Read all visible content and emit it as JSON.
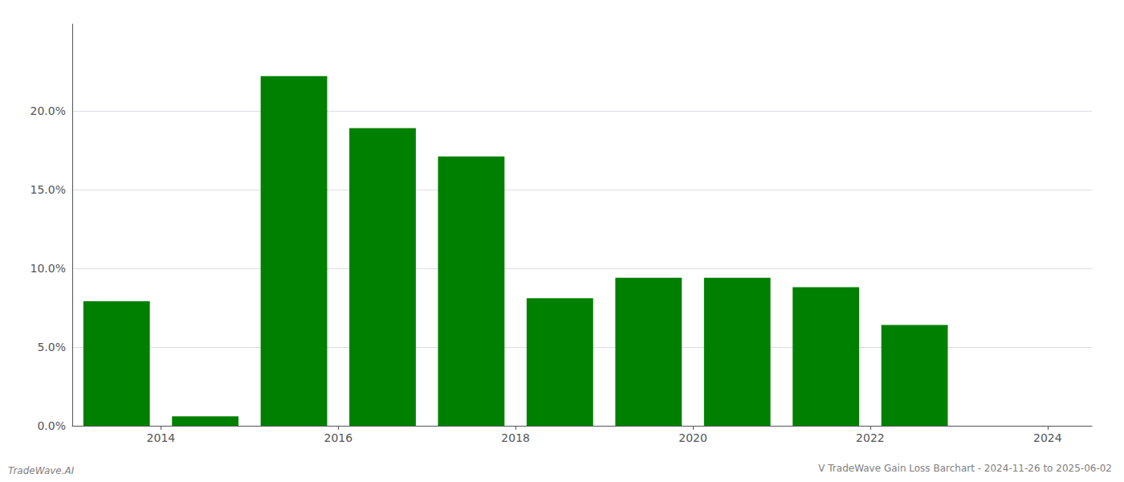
{
  "chart_data": {
    "type": "bar",
    "title": "V TradeWave Gain Loss Barchart - 2024-11-26 to 2025-06-02",
    "annotations": [
      "TradeWave.AI"
    ],
    "x": [
      2014,
      2015,
      2016,
      2017,
      2018,
      2019,
      2020,
      2021,
      2022,
      2023,
      2024
    ],
    "values": [
      0.079,
      0.006,
      0.222,
      0.189,
      0.171,
      0.081,
      0.094,
      0.094,
      0.088,
      0.064,
      0.0
    ],
    "color": "#008000",
    "xlim": [
      2013.5,
      2025.0
    ],
    "xticks": [
      {
        "value": 2014.5,
        "label": "2014"
      },
      {
        "value": 2016.5,
        "label": "2016"
      },
      {
        "value": 2018.5,
        "label": "2018"
      },
      {
        "value": 2020.5,
        "label": "2020"
      },
      {
        "value": 2022.5,
        "label": "2022"
      },
      {
        "value": 2024.5,
        "label": "2024"
      }
    ],
    "ylim": [
      0,
      0.255
    ],
    "yticks": [
      {
        "value": 0.0,
        "label": "0.0%"
      },
      {
        "value": 0.05,
        "label": "5.0%"
      },
      {
        "value": 0.1,
        "label": "10.0%"
      },
      {
        "value": 0.15,
        "label": "15.0%"
      },
      {
        "value": 0.2,
        "label": "20.0%"
      }
    ],
    "grid": true
  }
}
